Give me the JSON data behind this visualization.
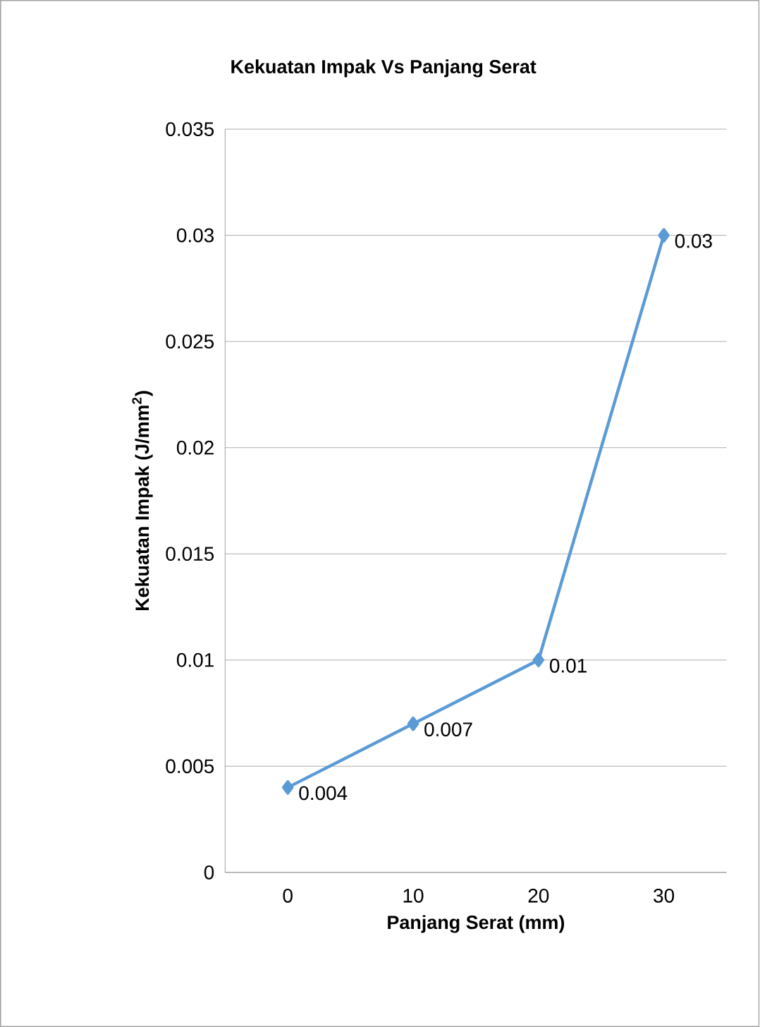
{
  "chart_data": {
    "type": "line",
    "title": "Kekuatan Impak Vs Panjang Serat",
    "xlabel": "Panjang Serat (mm)",
    "ylabel": "Kekuatan Impak (J/mm$^{2}$)",
    "categories": [
      "0",
      "10",
      "20",
      "30"
    ],
    "values": [
      0.004,
      0.007,
      0.01,
      0.03
    ],
    "color": "#5b9bd5",
    "marker": "diamond",
    "line_style": "solid",
    "ylim": [
      0,
      0.035
    ],
    "yticks": [
      0,
      0.005,
      0.01,
      0.015,
      0.02,
      0.025,
      0.03,
      0.035
    ],
    "grid": "y",
    "data_labels": true
  }
}
